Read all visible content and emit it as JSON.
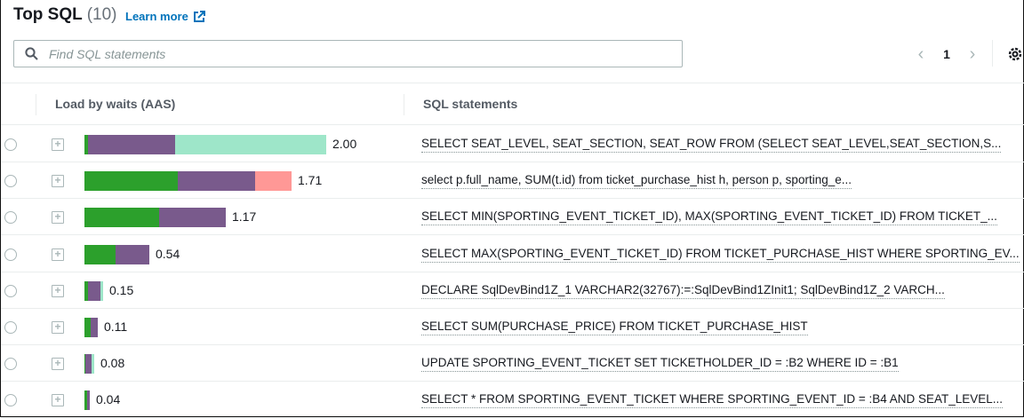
{
  "header": {
    "title": "Top SQL",
    "count": "(10)",
    "learn_more": "Learn more"
  },
  "search": {
    "placeholder": "Find SQL statements",
    "value": ""
  },
  "pagination": {
    "current_page": "1"
  },
  "columns": {
    "load": "Load by waits (AAS)",
    "sql": "SQL statements"
  },
  "colors": {
    "green": "#2ca02c",
    "purple": "#795a8c",
    "mint": "#9ee6c9",
    "salmon": "#ff9896",
    "link": "#0073bb"
  },
  "icons": {
    "search": "search-icon",
    "external": "external-link-icon",
    "prev": "chevron-left-icon",
    "next": "chevron-right-icon",
    "settings": "gear-icon",
    "expand": "plus-square-icon"
  },
  "rows": [
    {
      "load": "2.00",
      "segments": [
        {
          "color": "green",
          "value": 0.03
        },
        {
          "color": "purple",
          "value": 0.72
        },
        {
          "color": "mint",
          "value": 1.25
        }
      ],
      "sql": "SELECT SEAT_LEVEL, SEAT_SECTION, SEAT_ROW FROM (SELECT SEAT_LEVEL,SEAT_SECTION,S..."
    },
    {
      "load": "1.71",
      "segments": [
        {
          "color": "green",
          "value": 0.77
        },
        {
          "color": "purple",
          "value": 0.64
        },
        {
          "color": "salmon",
          "value": 0.3
        }
      ],
      "sql": "select p.full_name, SUM(t.id) from ticket_purchase_hist h, person p, sporting_e..."
    },
    {
      "load": "1.17",
      "segments": [
        {
          "color": "green",
          "value": 0.62
        },
        {
          "color": "purple",
          "value": 0.55
        }
      ],
      "sql": "SELECT MIN(SPORTING_EVENT_TICKET_ID), MAX(SPORTING_EVENT_TICKET_ID) FROM TICKET_..."
    },
    {
      "load": "0.54",
      "segments": [
        {
          "color": "green",
          "value": 0.26
        },
        {
          "color": "purple",
          "value": 0.28
        }
      ],
      "sql": "SELECT MAX(SPORTING_EVENT_TICKET_ID) FROM TICKET_PURCHASE_HIST WHERE SPORTING_EV..."
    },
    {
      "load": "0.15",
      "segments": [
        {
          "color": "green",
          "value": 0.03
        },
        {
          "color": "purple",
          "value": 0.1
        },
        {
          "color": "mint",
          "value": 0.02
        }
      ],
      "sql": "DECLARE SqlDevBind1Z_1 VARCHAR2(32767):=:SqlDevBind1ZInit1; SqlDevBind1Z_2 VARCH..."
    },
    {
      "load": "0.11",
      "segments": [
        {
          "color": "green",
          "value": 0.05
        },
        {
          "color": "purple",
          "value": 0.06
        }
      ],
      "sql": "SELECT SUM(PURCHASE_PRICE) FROM TICKET_PURCHASE_HIST"
    },
    {
      "load": "0.08",
      "segments": [
        {
          "color": "green",
          "value": 0.01
        },
        {
          "color": "purple",
          "value": 0.05
        },
        {
          "color": "mint",
          "value": 0.02
        }
      ],
      "sql": "UPDATE SPORTING_EVENT_TICKET SET TICKETHOLDER_ID = :B2 WHERE ID = :B1"
    },
    {
      "load": "0.04",
      "segments": [
        {
          "color": "green",
          "value": 0.02
        },
        {
          "color": "purple",
          "value": 0.02
        }
      ],
      "sql": "SELECT * FROM SPORTING_EVENT_TICKET WHERE SPORTING_EVENT_ID = :B4 AND SEAT_LEVEL..."
    }
  ]
}
